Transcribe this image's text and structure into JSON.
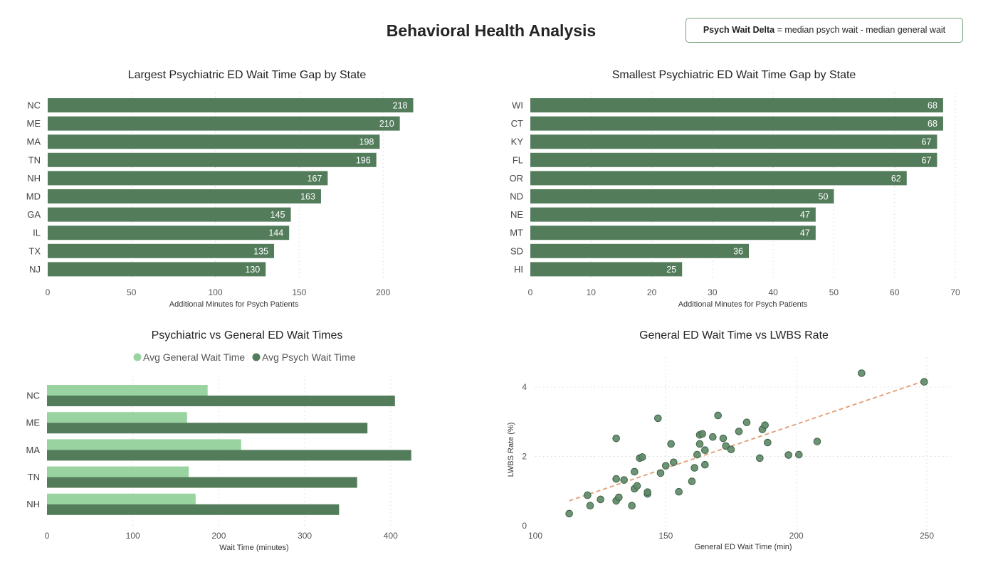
{
  "page": {
    "title": "Behavioral Health Analysis",
    "note": {
      "term": "Psych Wait Delta",
      "definition": " = median psych wait - median general wait"
    }
  },
  "colors": {
    "bar": "#537c5b",
    "light": "#99d4a0",
    "dark": "#537c5b",
    "trend": "#e3a47e"
  },
  "chart_data": [
    {
      "type": "bar",
      "orientation": "horizontal",
      "title": "Largest Psychiatric ED Wait Time Gap by State",
      "xlabel": "Additional Minutes for Psych Patients",
      "categories": [
        "NC",
        "ME",
        "MA",
        "TN",
        "NH",
        "MD",
        "GA",
        "IL",
        "TX",
        "NJ"
      ],
      "values": [
        218,
        210,
        198,
        196,
        167,
        163,
        145,
        144,
        135,
        130
      ],
      "xlim": [
        0,
        225
      ],
      "xticks": [
        0,
        50,
        100,
        150,
        200
      ],
      "grid": true
    },
    {
      "type": "bar",
      "orientation": "horizontal",
      "title": "Smallest Psychiatric ED Wait Time Gap by State",
      "xlabel": "Additional Minutes for Psych Patients",
      "categories": [
        "WI",
        "CT",
        "KY",
        "FL",
        "OR",
        "ND",
        "NE",
        "MT",
        "SD",
        "HI"
      ],
      "values": [
        68,
        68,
        67,
        67,
        62,
        50,
        47,
        47,
        36,
        25
      ],
      "xlim": [
        0,
        70
      ],
      "xticks": [
        0,
        10,
        20,
        30,
        40,
        50,
        60,
        70
      ],
      "grid": true
    },
    {
      "type": "bar",
      "orientation": "horizontal",
      "grouped": true,
      "title": "Psychiatric vs General ED Wait Times",
      "xlabel": "Wait Time (minutes)",
      "legend_position": "top",
      "categories": [
        "NC",
        "ME",
        "MA",
        "TN",
        "NH"
      ],
      "series": [
        {
          "name": "Avg General Wait Time",
          "values": [
            187,
            163,
            226,
            165,
            173
          ]
        },
        {
          "name": "Avg Psych Wait Time",
          "values": [
            405,
            373,
            424,
            361,
            340
          ]
        }
      ],
      "xlim": [
        0,
        430
      ],
      "xticks": [
        0,
        100,
        200,
        300,
        400
      ],
      "grid": true
    },
    {
      "type": "scatter",
      "title": "General ED Wait Time vs LWBS Rate",
      "xlabel": "General ED Wait Time (min)",
      "ylabel": "LWBS Rate (%)",
      "xlim": [
        100,
        260
      ],
      "ylim": [
        0,
        4.9
      ],
      "xticks": [
        100,
        150,
        200,
        250
      ],
      "yticks": [
        0,
        2,
        4
      ],
      "trendline": {
        "x": [
          113,
          250
        ],
        "y": [
          0.72,
          4.2
        ]
      },
      "points": [
        [
          113,
          0.35
        ],
        [
          120,
          0.88
        ],
        [
          121,
          0.58
        ],
        [
          125,
          0.76
        ],
        [
          131,
          2.52
        ],
        [
          131,
          1.35
        ],
        [
          131,
          0.72
        ],
        [
          132,
          0.82
        ],
        [
          134,
          1.32
        ],
        [
          137,
          0.58
        ],
        [
          138,
          1.07
        ],
        [
          138,
          1.56
        ],
        [
          139,
          1.15
        ],
        [
          140,
          1.95
        ],
        [
          141,
          1.98
        ],
        [
          143,
          0.92
        ],
        [
          143,
          0.97
        ],
        [
          147,
          3.1
        ],
        [
          148,
          1.52
        ],
        [
          150,
          1.73
        ],
        [
          152,
          2.36
        ],
        [
          153,
          1.83
        ],
        [
          155,
          0.98
        ],
        [
          160,
          1.28
        ],
        [
          161,
          1.67
        ],
        [
          162,
          2.05
        ],
        [
          163,
          2.62
        ],
        [
          163,
          2.36
        ],
        [
          164,
          2.65
        ],
        [
          165,
          2.18
        ],
        [
          165,
          1.76
        ],
        [
          168,
          2.56
        ],
        [
          170,
          3.18
        ],
        [
          172,
          2.52
        ],
        [
          173,
          2.3
        ],
        [
          175,
          2.2
        ],
        [
          178,
          2.72
        ],
        [
          181,
          2.98
        ],
        [
          186,
          1.95
        ],
        [
          187,
          2.78
        ],
        [
          188,
          2.9
        ],
        [
          189,
          2.4
        ],
        [
          197,
          2.04
        ],
        [
          201,
          2.05
        ],
        [
          208,
          2.43
        ],
        [
          225,
          4.4
        ],
        [
          249,
          4.15
        ]
      ],
      "grid": true
    }
  ]
}
